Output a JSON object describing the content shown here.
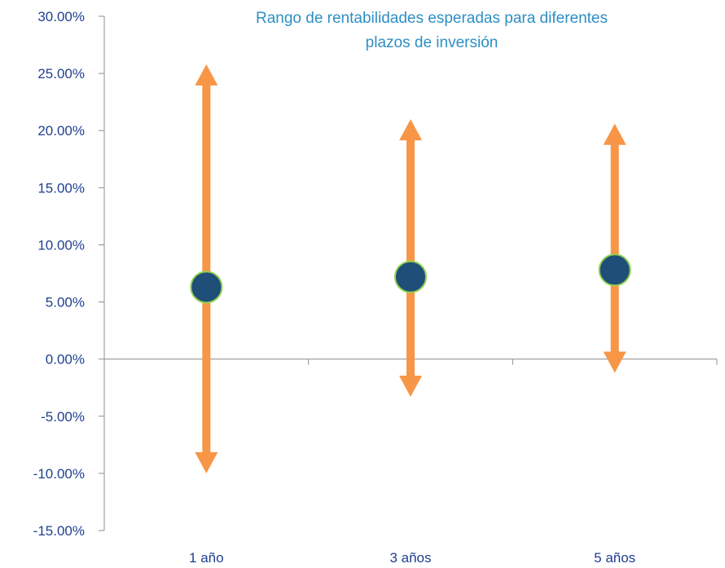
{
  "chart_data": {
    "type": "range",
    "title_lines": [
      "Rango de rentabilidades esperadas para diferentes",
      "plazos de inversión"
    ],
    "categories": [
      "1 año",
      "3 años",
      "5 años"
    ],
    "expected": [
      6.3,
      7.2,
      7.8
    ],
    "high": [
      25.8,
      21.0,
      20.6
    ],
    "low": [
      -10.0,
      -3.3,
      -1.2
    ],
    "ylim": [
      -15,
      30
    ],
    "yticks": [
      30,
      25,
      20,
      15,
      10,
      5,
      0,
      -5,
      -10,
      -15
    ],
    "ytick_labels": [
      "30.00%",
      "25.00%",
      "20.00%",
      "15.00%",
      "10.00%",
      "5.00%",
      "0.00%",
      "-5.00%",
      "-10.00%",
      "-15.00%"
    ],
    "colors": {
      "range_arrow": "#f79646",
      "marker_fill": "#1f4e79",
      "marker_border": "#92d050",
      "axis": "#8c8c8c",
      "tick_text": "#1f3f8f",
      "title_text": "#2e8fc4"
    },
    "grid": false,
    "legend": "none"
  }
}
